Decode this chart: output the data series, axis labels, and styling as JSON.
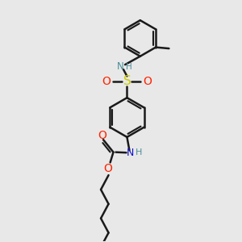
{
  "bg_color": "#e8e8e8",
  "bond_color": "#1a1a1a",
  "N_color": "#4a8f9a",
  "O_color": "#ff2200",
  "S_color": "#cccc00",
  "C_color": "#1a1a1a",
  "line_width": 1.8,
  "figsize": [
    3.0,
    3.0
  ],
  "dpi": 100,
  "xlim": [
    0,
    10
  ],
  "ylim": [
    0,
    10
  ]
}
